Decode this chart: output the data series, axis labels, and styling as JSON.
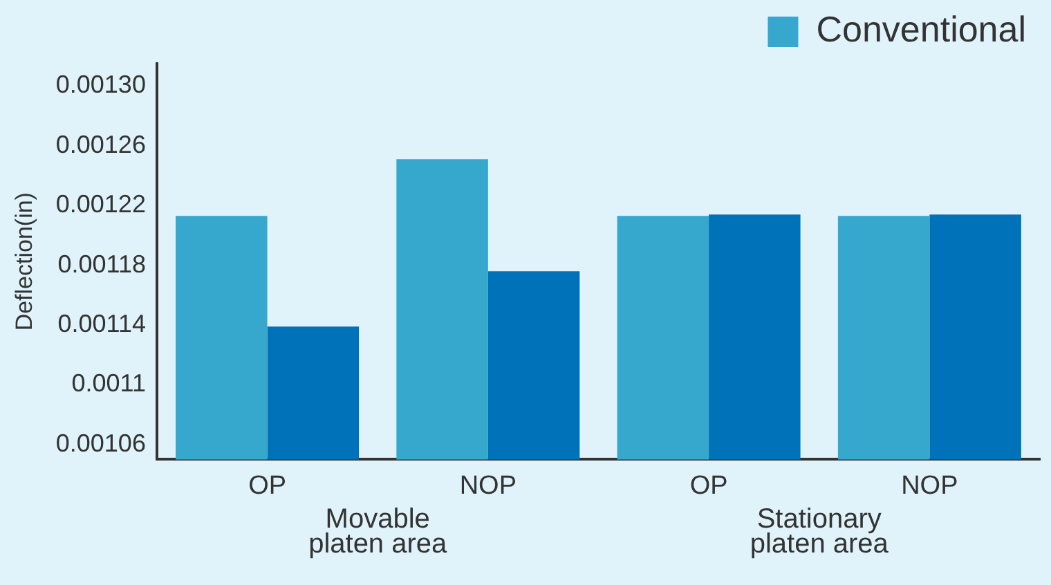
{
  "chart_data": {
    "type": "bar",
    "ylabel": "Deflection(in)",
    "categories": [
      "OP",
      "NOP",
      "OP",
      "NOP"
    ],
    "series": [
      {
        "name": "Conventional",
        "color": "#36a7cd",
        "values": [
          0.001213,
          0.001251,
          0.001213,
          0.001213
        ]
      },
      {
        "color": "#0072ba",
        "values": [
          0.001139,
          0.001176,
          0.001214,
          0.001214
        ]
      }
    ],
    "ylim": [
      0.00105,
      0.001315
    ],
    "yticks": [
      0.00106,
      0.0011,
      0.00114,
      0.00118,
      0.00122,
      0.00126,
      {
        "value": 0.0013,
        "label": "0.00130"
      }
    ],
    "annotations": [
      "Movable\nplaten area",
      "Stationary\nplaten area"
    ],
    "grid": false,
    "legend": "top right"
  }
}
